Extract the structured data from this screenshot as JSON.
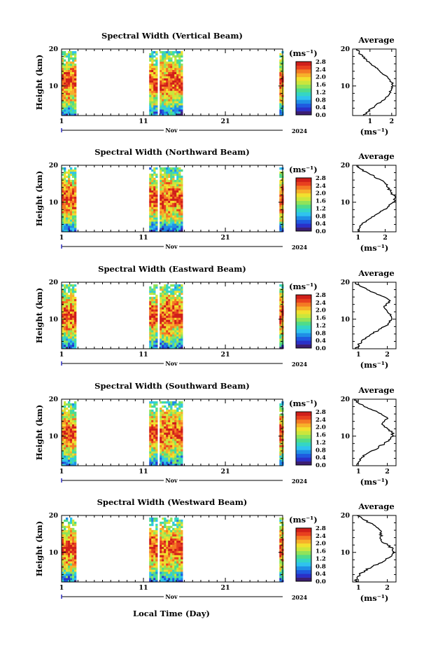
{
  "xlabel": "Local Time (Day)",
  "month_label": "Nov",
  "year_label": "2024",
  "ylabel": "Height (km)",
  "ytick_labels": [
    "10",
    "20"
  ],
  "xtick_labels": [
    "1",
    "11",
    "21"
  ],
  "colorbar_unit": "(ms⁻¹)",
  "colorbar_ticks": [
    "0.0",
    "0.4",
    "0.8",
    "1.2",
    "1.6",
    "2.0",
    "2.4",
    "2.8"
  ],
  "avg_title": "Average",
  "avg_xlabel": "(ms⁻¹)",
  "colors": {
    "colormap": [
      "#3c1e72",
      "#2a30c8",
      "#1f5ae0",
      "#1f8fe6",
      "#2fc3ee",
      "#34d6c4",
      "#4fdc8a",
      "#8fe35a",
      "#cbe63c",
      "#f2e02e",
      "#f7b02a",
      "#f47a24",
      "#e8401f",
      "#d01f1a"
    ]
  },
  "chart_data": [
    {
      "type": "heatmap",
      "title": "Spectral Width (Vertical Beam)",
      "xlim": [
        1,
        28
      ],
      "ylim": [
        2,
        20
      ],
      "data_intervals_days": [
        [
          1.0,
          2.7
        ],
        [
          11.7,
          15.8
        ],
        [
          27.6,
          28.0
        ]
      ],
      "colorbar_range": [
        0.0,
        2.8
      ],
      "average_profile": {
        "title": "Average",
        "xlim": [
          0.2,
          2.2
        ],
        "xtick_labels": [
          "1",
          "2"
        ],
        "ylim": [
          2,
          20
        ],
        "height_km": [
          2,
          3,
          4,
          5,
          6,
          7,
          8,
          9,
          10,
          11,
          12,
          13,
          14,
          15,
          16,
          17,
          18,
          19,
          20
        ],
        "width_ms": [
          0.7,
          0.9,
          1.1,
          1.3,
          1.55,
          1.75,
          1.9,
          2.0,
          2.05,
          2.0,
          1.85,
          1.65,
          1.45,
          1.25,
          1.05,
          0.85,
          0.65,
          0.5,
          0.4
        ]
      }
    },
    {
      "type": "heatmap",
      "title": "Spectral Width (Northward Beam)",
      "xlim": [
        1,
        28
      ],
      "ylim": [
        2,
        20
      ],
      "data_intervals_days": [
        [
          1.0,
          2.7
        ],
        [
          11.7,
          15.8
        ],
        [
          27.6,
          28.0
        ]
      ],
      "colorbar_range": [
        0.0,
        2.8
      ],
      "average_profile": {
        "title": "Average",
        "xlim": [
          0.8,
          2.4
        ],
        "xtick_labels": [
          "1",
          "2"
        ],
        "ylim": [
          2,
          20
        ],
        "height_km": [
          2,
          3,
          4,
          5,
          6,
          7,
          8,
          9,
          10,
          11,
          12,
          13,
          14,
          15,
          16,
          17,
          18,
          19,
          20
        ],
        "width_ms": [
          1.0,
          1.05,
          1.15,
          1.3,
          1.5,
          1.75,
          1.95,
          2.15,
          2.3,
          2.35,
          2.3,
          2.2,
          2.1,
          2.0,
          1.85,
          1.6,
          1.35,
          1.1,
          0.95
        ]
      }
    },
    {
      "type": "heatmap",
      "title": "Spectral Width (Eastward Beam)",
      "xlim": [
        1,
        28
      ],
      "ylim": [
        2,
        20
      ],
      "data_intervals_days": [
        [
          1.0,
          2.7
        ],
        [
          11.7,
          15.8
        ],
        [
          27.6,
          28.0
        ]
      ],
      "colorbar_range": [
        0.0,
        2.8
      ],
      "average_profile": {
        "title": "Average",
        "xlim": [
          0.8,
          2.3
        ],
        "xtick_labels": [
          "1",
          "2"
        ],
        "ylim": [
          2,
          20
        ],
        "height_km": [
          2,
          3,
          4,
          5,
          6,
          7,
          8,
          9,
          10,
          11,
          12,
          13,
          14,
          15,
          16,
          17,
          18,
          19,
          20
        ],
        "width_ms": [
          0.9,
          1.0,
          1.1,
          1.25,
          1.45,
          1.7,
          1.9,
          2.05,
          2.15,
          2.1,
          2.0,
          1.9,
          1.95,
          2.1,
          1.9,
          1.6,
          1.3,
          1.05,
          0.9
        ]
      }
    },
    {
      "type": "heatmap",
      "title": "Spectral Width (Southward Beam)",
      "xlim": [
        1,
        28
      ],
      "ylim": [
        2,
        20
      ],
      "data_intervals_days": [
        [
          1.0,
          2.7
        ],
        [
          11.7,
          15.8
        ],
        [
          27.6,
          28.0
        ]
      ],
      "colorbar_range": [
        0.0,
        2.8
      ],
      "average_profile": {
        "title": "Average",
        "xlim": [
          0.8,
          2.3
        ],
        "xtick_labels": [
          "1",
          "2"
        ],
        "ylim": [
          2,
          20
        ],
        "height_km": [
          2,
          3,
          4,
          5,
          6,
          7,
          8,
          9,
          10,
          11,
          12,
          13,
          14,
          15,
          16,
          17,
          18,
          19,
          20
        ],
        "width_ms": [
          0.95,
          1.0,
          1.1,
          1.25,
          1.45,
          1.7,
          1.9,
          2.05,
          2.2,
          2.15,
          2.0,
          1.85,
          1.9,
          2.0,
          1.8,
          1.5,
          1.2,
          1.0,
          0.9
        ]
      }
    },
    {
      "type": "heatmap",
      "title": "Spectral Width (Westward Beam)",
      "xlim": [
        1,
        28
      ],
      "ylim": [
        2,
        20
      ],
      "data_intervals_days": [
        [
          1.0,
          2.7
        ],
        [
          11.7,
          15.8
        ],
        [
          27.6,
          28.0
        ]
      ],
      "colorbar_range": [
        0.0,
        2.8
      ],
      "average_profile": {
        "title": "Average",
        "xlim": [
          0.8,
          2.3
        ],
        "xtick_labels": [
          "1",
          "2"
        ],
        "ylim": [
          2,
          20
        ],
        "height_km": [
          2,
          3,
          4,
          5,
          6,
          7,
          8,
          9,
          10,
          11,
          12,
          13,
          14,
          15,
          16,
          17,
          18,
          19,
          20
        ],
        "width_ms": [
          0.9,
          0.95,
          1.05,
          1.2,
          1.45,
          1.7,
          1.95,
          2.15,
          2.25,
          2.2,
          2.0,
          1.8,
          1.75,
          1.8,
          1.75,
          1.6,
          1.4,
          1.15,
          0.95
        ]
      }
    }
  ]
}
